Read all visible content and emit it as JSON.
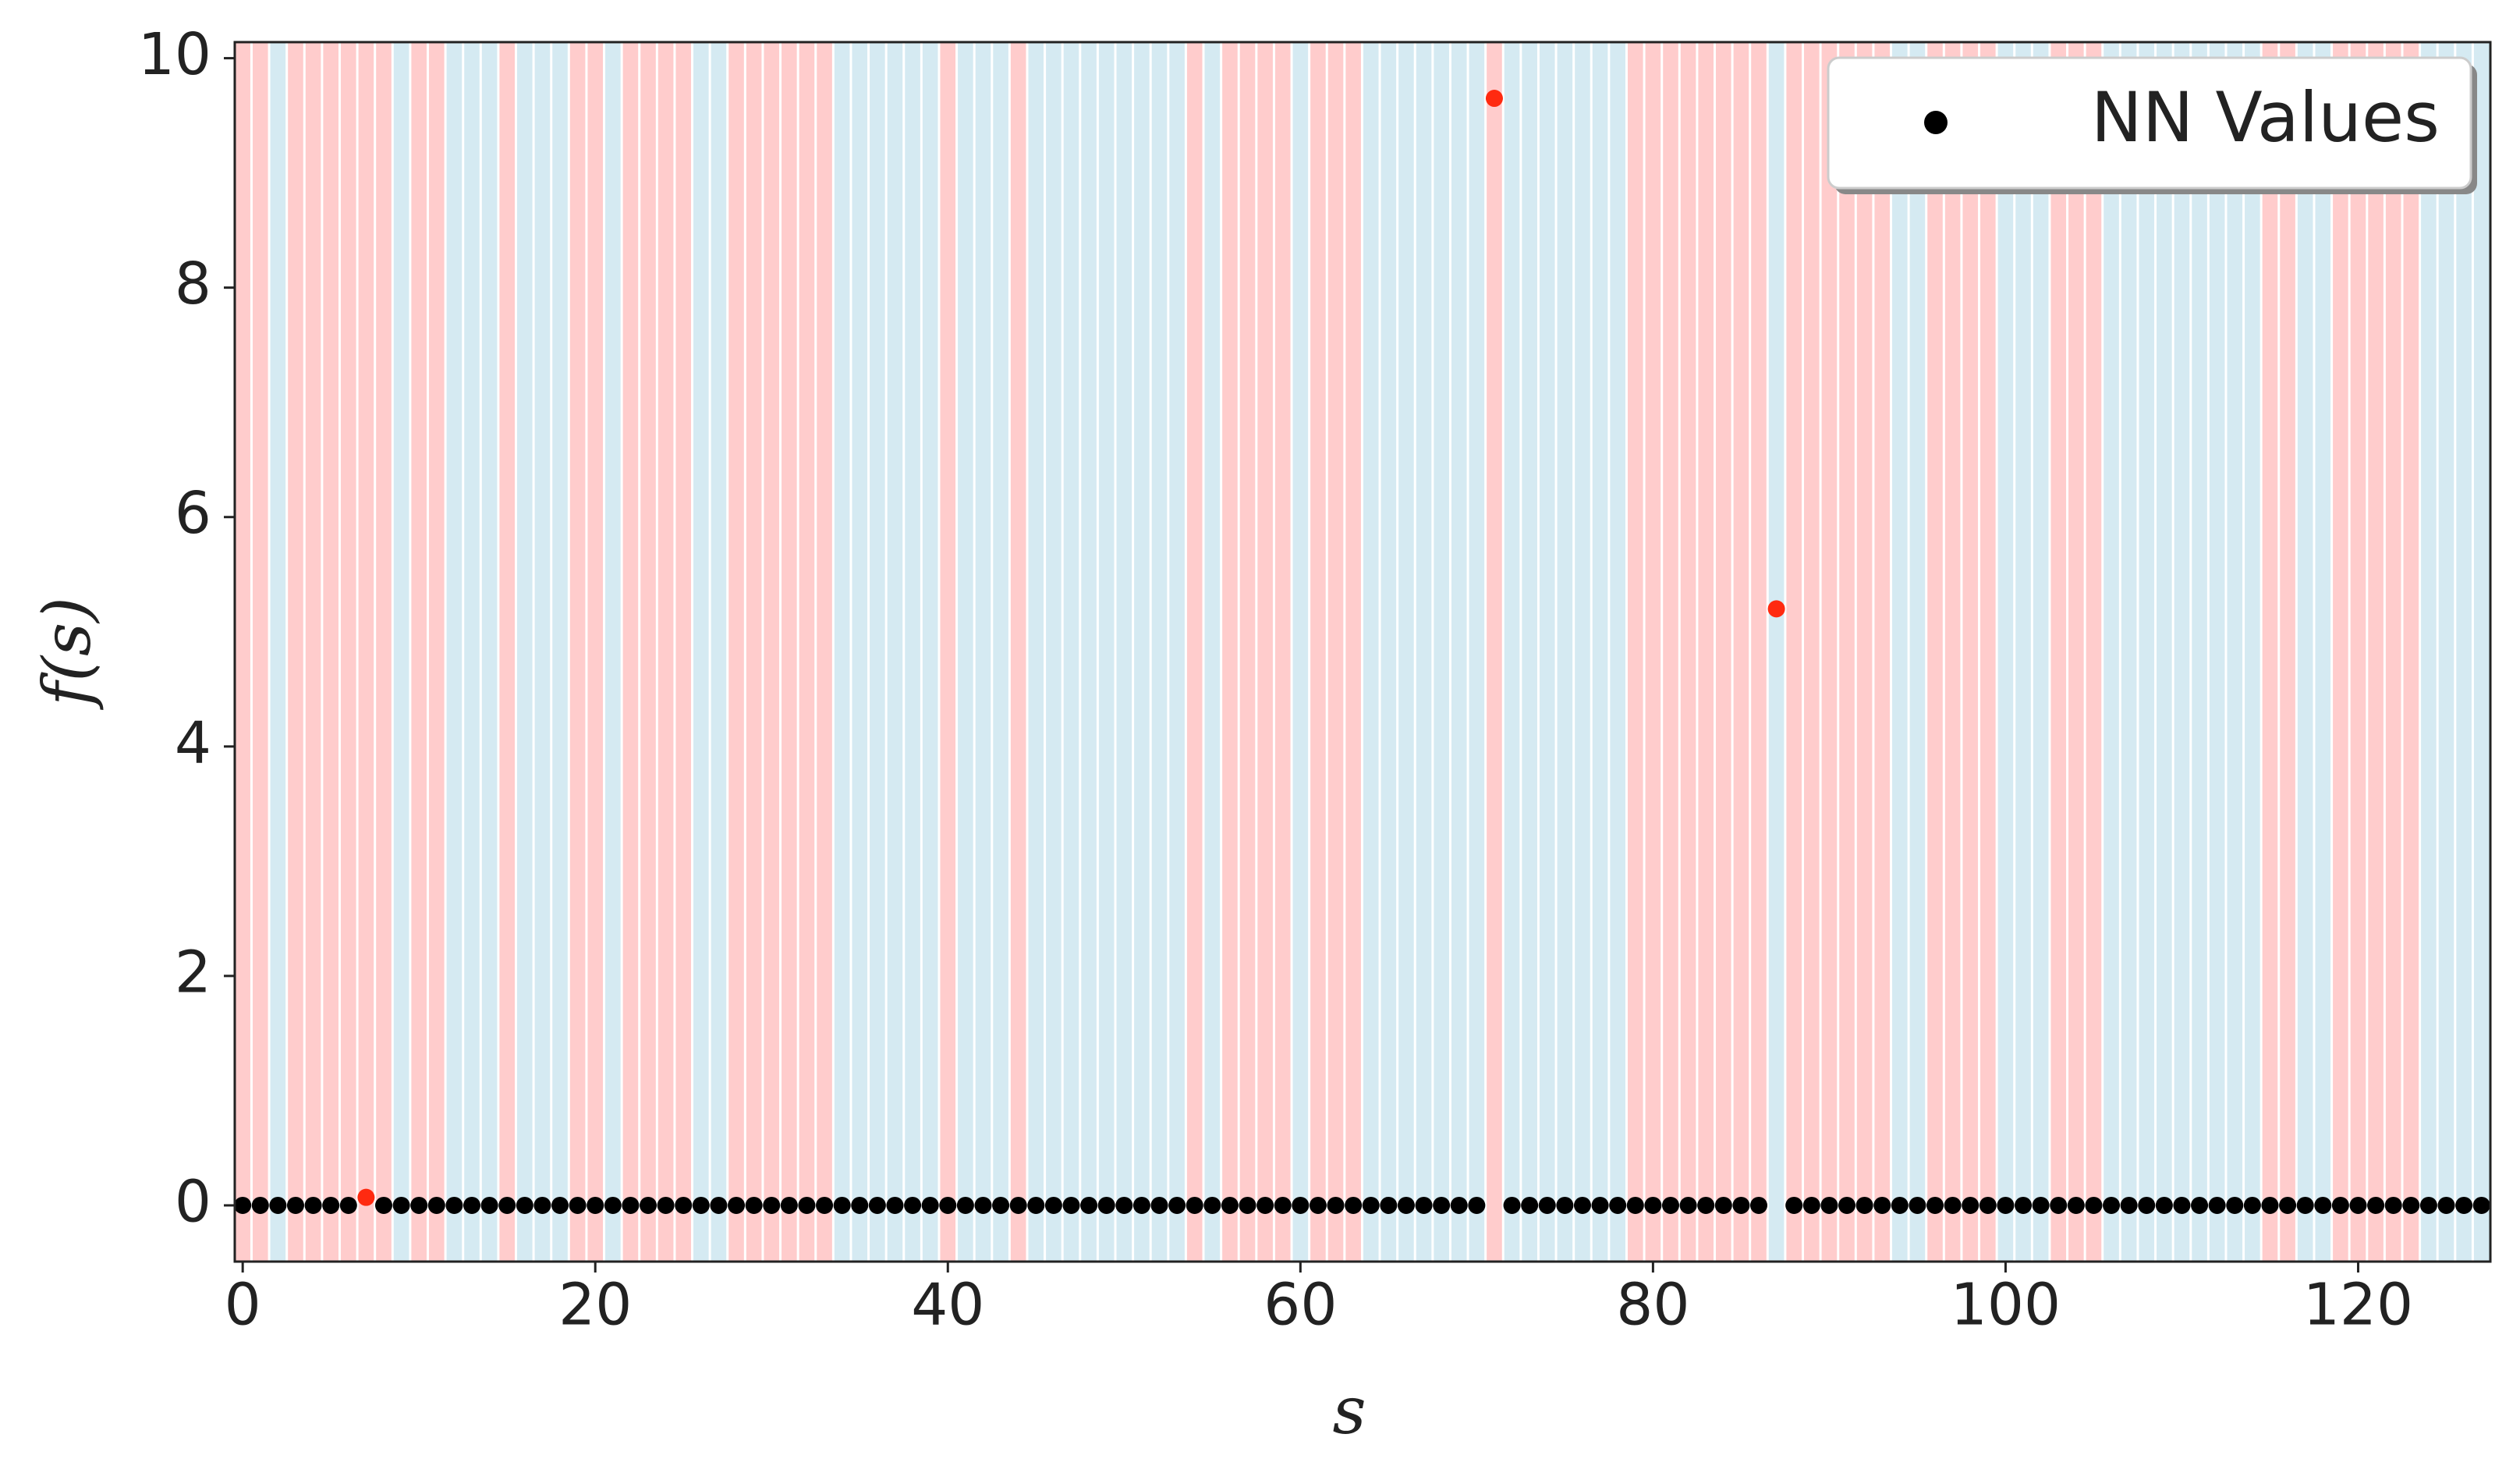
{
  "chart_data": {
    "type": "scatter",
    "x_label": "s",
    "y_label": "f(s)",
    "x": [
      0,
      1,
      2,
      3,
      4,
      5,
      6,
      7,
      8,
      9,
      10,
      11,
      12,
      13,
      14,
      15,
      16,
      17,
      18,
      19,
      20,
      21,
      22,
      23,
      24,
      25,
      26,
      27,
      28,
      29,
      30,
      31,
      32,
      33,
      34,
      35,
      36,
      37,
      38,
      39,
      40,
      41,
      42,
      43,
      44,
      45,
      46,
      47,
      48,
      49,
      50,
      51,
      52,
      53,
      54,
      55,
      56,
      57,
      58,
      59,
      60,
      61,
      62,
      63,
      64,
      65,
      66,
      67,
      68,
      69,
      70,
      71,
      72,
      73,
      74,
      75,
      76,
      77,
      78,
      79,
      80,
      81,
      82,
      83,
      84,
      85,
      86,
      87,
      88,
      89,
      90,
      91,
      92,
      93,
      94,
      95,
      96,
      97,
      98,
      99,
      100,
      101,
      102,
      103,
      104,
      105,
      106,
      107,
      108,
      109,
      110,
      111,
      112,
      113,
      114,
      115,
      116,
      117,
      118,
      119,
      120,
      121,
      122,
      123,
      124,
      125,
      126,
      127
    ],
    "series": [
      {
        "name": "NN Values",
        "color": "#000000",
        "values": [
          0,
          0,
          0,
          0,
          0,
          0,
          0,
          0.07,
          0,
          0,
          0,
          0,
          0,
          0,
          0,
          0,
          0,
          0,
          0,
          0,
          0,
          0,
          0,
          0,
          0,
          0,
          0,
          0,
          0,
          0,
          0,
          0,
          0,
          0,
          0,
          0,
          0,
          0,
          0,
          0,
          0,
          0,
          0,
          0,
          0,
          0,
          0,
          0,
          0,
          0,
          0,
          0,
          0,
          0,
          0,
          0,
          0,
          0,
          0,
          0,
          0,
          0,
          0,
          0,
          0,
          0,
          0,
          0,
          0,
          0,
          0,
          9.65,
          0,
          0,
          0,
          0,
          0,
          0,
          0,
          0,
          0,
          0,
          0,
          0,
          0,
          0,
          0,
          5.2,
          0,
          0,
          0,
          0,
          0,
          0,
          0,
          0,
          0,
          0,
          0,
          0,
          0,
          0,
          0,
          0,
          0,
          0,
          0,
          0,
          0,
          0,
          0,
          0,
          0,
          0,
          0,
          0,
          0,
          0,
          0,
          0,
          0,
          0,
          0,
          0,
          0,
          0,
          0,
          0
        ],
        "point_colors": [
          "#000000",
          "#000000",
          "#000000",
          "#000000",
          "#000000",
          "#000000",
          "#000000",
          "#ff2a10",
          "#000000",
          "#000000",
          "#000000",
          "#000000",
          "#000000",
          "#000000",
          "#000000",
          "#000000",
          "#000000",
          "#000000",
          "#000000",
          "#000000",
          "#000000",
          "#000000",
          "#000000",
          "#000000",
          "#000000",
          "#000000",
          "#000000",
          "#000000",
          "#000000",
          "#000000",
          "#000000",
          "#000000",
          "#000000",
          "#000000",
          "#000000",
          "#000000",
          "#000000",
          "#000000",
          "#000000",
          "#000000",
          "#000000",
          "#000000",
          "#000000",
          "#000000",
          "#000000",
          "#000000",
          "#000000",
          "#000000",
          "#000000",
          "#000000",
          "#000000",
          "#000000",
          "#000000",
          "#000000",
          "#000000",
          "#000000",
          "#000000",
          "#000000",
          "#000000",
          "#000000",
          "#000000",
          "#000000",
          "#000000",
          "#000000",
          "#000000",
          "#000000",
          "#000000",
          "#000000",
          "#000000",
          "#000000",
          "#000000",
          "#ff2a10",
          "#000000",
          "#000000",
          "#000000",
          "#000000",
          "#000000",
          "#000000",
          "#000000",
          "#000000",
          "#000000",
          "#000000",
          "#000000",
          "#000000",
          "#000000",
          "#000000",
          "#000000",
          "#ff2a10",
          "#000000",
          "#000000",
          "#000000",
          "#000000",
          "#000000",
          "#000000",
          "#000000",
          "#000000",
          "#000000",
          "#000000",
          "#000000",
          "#000000",
          "#000000",
          "#000000",
          "#000000",
          "#000000",
          "#000000",
          "#000000",
          "#000000",
          "#000000",
          "#000000",
          "#000000",
          "#000000",
          "#000000",
          "#000000",
          "#000000",
          "#000000",
          "#000000",
          "#000000",
          "#000000",
          "#000000",
          "#000000",
          "#000000",
          "#000000",
          "#000000",
          "#000000",
          "#000000",
          "#000000",
          "#000000",
          "#000000"
        ]
      }
    ],
    "shading": {
      "colors": [
        "#ffcccc",
        "#d5eaf2"
      ],
      "classes": [
        0,
        0,
        1,
        0,
        0,
        0,
        0,
        0,
        0,
        1,
        0,
        0,
        1,
        1,
        1,
        0,
        1,
        1,
        1,
        0,
        0,
        1,
        0,
        0,
        0,
        0,
        1,
        1,
        0,
        0,
        0,
        0,
        0,
        0,
        1,
        1,
        1,
        1,
        1,
        1,
        0,
        1,
        1,
        1,
        0,
        1,
        1,
        1,
        1,
        1,
        1,
        1,
        1,
        1,
        0,
        1,
        0,
        0,
        0,
        0,
        1,
        0,
        0,
        0,
        1,
        1,
        1,
        1,
        1,
        1,
        1,
        0,
        1,
        1,
        1,
        1,
        1,
        1,
        1,
        0,
        0,
        0,
        0,
        0,
        0,
        0,
        0,
        1,
        0,
        0,
        0,
        0,
        0,
        0,
        1,
        1,
        0,
        0,
        0,
        0,
        1,
        1,
        1,
        0,
        0,
        0,
        1,
        1,
        1,
        1,
        1,
        1,
        1,
        1,
        1,
        0,
        0,
        1,
        1,
        0,
        0,
        0,
        0,
        0,
        1,
        1,
        1,
        1
      ]
    },
    "xlim": [
      -0.45,
      127.5
    ],
    "ylim": [
      -0.49,
      10.14
    ],
    "xticks": [
      0,
      20,
      40,
      60,
      80,
      100,
      120
    ],
    "yticks": [
      0,
      2,
      4,
      6,
      8,
      10
    ],
    "legend": "upper right",
    "grid": false
  }
}
